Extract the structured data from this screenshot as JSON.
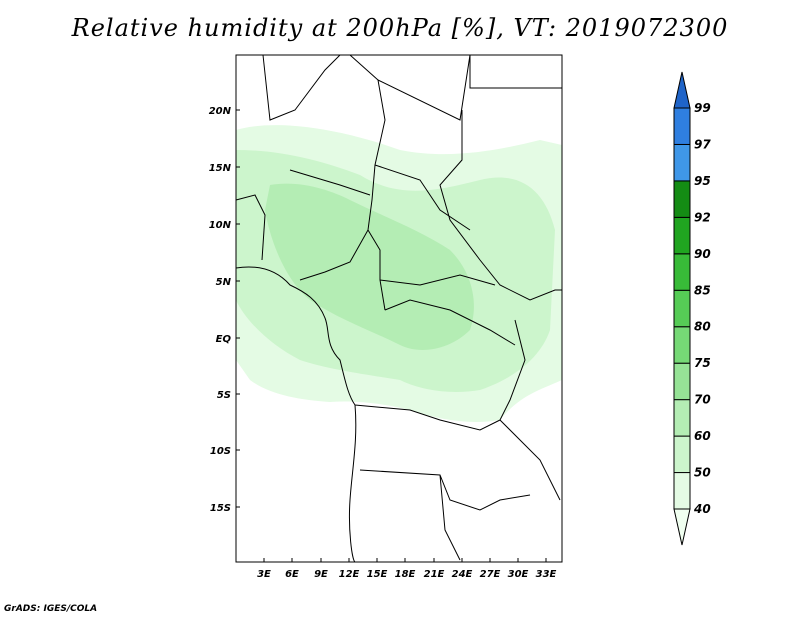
{
  "title": "Relative humidity at 200hPa [%], VT: 2019072300",
  "credit": "GrADS: IGES/COLA",
  "lat_labels": [
    "20N",
    "15N",
    "10N",
    "5N",
    "EQ",
    "5S",
    "10S",
    "15S"
  ],
  "lon_labels": [
    "3E",
    "6E",
    "9E",
    "12E",
    "15E",
    "18E",
    "21E",
    "24E",
    "27E",
    "30E",
    "33E"
  ],
  "colorbar": {
    "levels": [
      "40",
      "50",
      "60",
      "70",
      "75",
      "80",
      "85",
      "90",
      "92",
      "95",
      "97",
      "99"
    ],
    "colors": [
      "#f0fff0",
      "#e4fbe4",
      "#ccf5cc",
      "#b4edb4",
      "#96e396",
      "#76d976",
      "#56cc56",
      "#38bb38",
      "#20a520",
      "#148c14",
      "#3f97e8",
      "#2f7fe0",
      "#1f64c8"
    ]
  }
}
